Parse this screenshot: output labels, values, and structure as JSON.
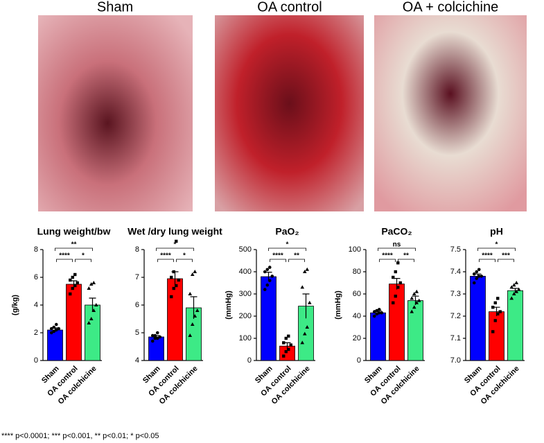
{
  "photos": [
    "Sham",
    "OA control",
    "OA + colcichine"
  ],
  "chart_data": [
    {
      "type": "bar",
      "title": "Lung weight/bw",
      "y_label": "(g/kg)",
      "categories": [
        "Sham",
        "OA control",
        "OA colchicine"
      ],
      "values": [
        2.2,
        5.5,
        4.0
      ],
      "errors": [
        0.15,
        0.25,
        0.5
      ],
      "points": [
        [
          2.0,
          2.1,
          2.2,
          2.3,
          2.3,
          2.4,
          2.6
        ],
        [
          4.8,
          5.2,
          5.4,
          5.6,
          5.8,
          6.0,
          6.2
        ],
        [
          2.7,
          3.0,
          3.6,
          4.0,
          5.2,
          5.5,
          5.6
        ]
      ],
      "colors": [
        "#0000ff",
        "#ff0000",
        "#3dea86"
      ],
      "ylim": [
        0,
        8
      ],
      "yticks": [
        0,
        2,
        4,
        6,
        8
      ],
      "significance": [
        {
          "groups": [
            0,
            2
          ],
          "label": "**"
        },
        {
          "groups": [
            0,
            1
          ],
          "label": "****"
        },
        {
          "groups": [
            1,
            2
          ],
          "label": "*"
        }
      ]
    },
    {
      "type": "bar",
      "title": "Wet /dry lung weight",
      "categories": [
        "Sham",
        "OA control",
        "OA colchicine"
      ],
      "values": [
        4.85,
        6.95,
        5.9
      ],
      "errors": [
        0.05,
        0.25,
        0.4
      ],
      "points": [
        [
          4.7,
          4.8,
          4.8,
          4.85,
          4.9,
          4.9,
          5.0
        ],
        [
          6.3,
          6.6,
          6.7,
          6.9,
          7.0,
          7.2,
          8.3
        ],
        [
          4.9,
          5.3,
          5.6,
          5.8,
          6.4,
          7.1,
          7.2
        ]
      ],
      "colors": [
        "#0000ff",
        "#ff0000",
        "#3dea86"
      ],
      "ylim": [
        4,
        8
      ],
      "yticks": [
        4,
        5,
        6,
        7,
        8
      ],
      "significance": [
        {
          "groups": [
            0,
            2
          ],
          "label": "*"
        },
        {
          "groups": [
            0,
            1
          ],
          "label": "****"
        },
        {
          "groups": [
            1,
            2
          ],
          "label": "*"
        }
      ]
    },
    {
      "type": "bar",
      "title": "PaO₂",
      "y_label": "(mmHg)",
      "categories": [
        "Sham",
        "OA control",
        "OA colchicine"
      ],
      "values": [
        378,
        65,
        245
      ],
      "errors": [
        20,
        15,
        55
      ],
      "points": [
        [
          320,
          340,
          360,
          380,
          400,
          410,
          420
        ],
        [
          20,
          40,
          50,
          70,
          80,
          100,
          110
        ],
        [
          80,
          120,
          150,
          260,
          330,
          400,
          410
        ]
      ],
      "colors": [
        "#0000ff",
        "#ff0000",
        "#3dea86"
      ],
      "ylim": [
        0,
        500
      ],
      "yticks": [
        0,
        100,
        200,
        300,
        400,
        500
      ],
      "significance": [
        {
          "groups": [
            0,
            2
          ],
          "label": "*"
        },
        {
          "groups": [
            0,
            1
          ],
          "label": "****"
        },
        {
          "groups": [
            1,
            2
          ],
          "label": "**"
        }
      ]
    },
    {
      "type": "bar",
      "title": "PaCO₂",
      "y_label": "(mmHg)",
      "categories": [
        "Sham",
        "OA control",
        "OA colchicine"
      ],
      "values": [
        43,
        69,
        54
      ],
      "errors": [
        2,
        5,
        4
      ],
      "points": [
        [
          40,
          42,
          43,
          43,
          44,
          45,
          46
        ],
        [
          52,
          58,
          66,
          70,
          75,
          80,
          88
        ],
        [
          44,
          48,
          52,
          54,
          56,
          60,
          62
        ]
      ],
      "colors": [
        "#0000ff",
        "#ff0000",
        "#3dea86"
      ],
      "ylim": [
        0,
        100
      ],
      "yticks": [
        0,
        20,
        40,
        60,
        80,
        100
      ],
      "significance": [
        {
          "groups": [
            0,
            2
          ],
          "label": "ns"
        },
        {
          "groups": [
            0,
            1
          ],
          "label": "****"
        },
        {
          "groups": [
            1,
            2
          ],
          "label": "**"
        }
      ]
    },
    {
      "type": "bar",
      "title": "pH",
      "categories": [
        "Sham",
        "OA control",
        "OA colchicine"
      ],
      "values": [
        7.38,
        7.22,
        7.315
      ],
      "errors": [
        0.01,
        0.02,
        0.01
      ],
      "points": [
        [
          7.35,
          7.37,
          7.38,
          7.38,
          7.39,
          7.4,
          7.41
        ],
        [
          7.13,
          7.18,
          7.21,
          7.22,
          7.24,
          7.26,
          7.28
        ],
        [
          7.28,
          7.3,
          7.31,
          7.32,
          7.33,
          7.34,
          7.35
        ]
      ],
      "colors": [
        "#0000ff",
        "#ff0000",
        "#3dea86"
      ],
      "ylim": [
        7,
        7.5
      ],
      "yticks": [
        {
          "value": 7,
          "label": "7.0"
        },
        7.1,
        7.2,
        7.3,
        7.4,
        7.5
      ],
      "significance": [
        {
          "groups": [
            0,
            2
          ],
          "label": "*"
        },
        {
          "groups": [
            0,
            1
          ],
          "label": "****"
        },
        {
          "groups": [
            1,
            2
          ],
          "label": "***"
        }
      ]
    }
  ],
  "footnote": "**** p<0.0001; *** p<0.001, ** p<0.01; * p<0.05"
}
